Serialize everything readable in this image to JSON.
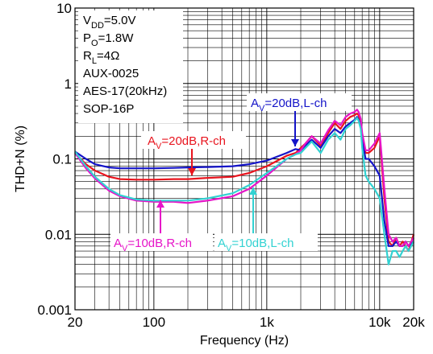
{
  "chart_data": {
    "type": "line",
    "xlabel": "Frequency (Hz)",
    "ylabel": "THD+N (%)",
    "xscale": "log",
    "yscale": "log",
    "xlim": [
      20,
      20000
    ],
    "ylim": [
      0.001,
      10
    ],
    "grid": true,
    "x_ticks": [
      {
        "value": 20,
        "label": "20"
      },
      {
        "value": 100,
        "label": "100"
      },
      {
        "value": 1000,
        "label": "1k"
      },
      {
        "value": 10000,
        "label": "10k"
      },
      {
        "value": 20000,
        "label": "20k"
      }
    ],
    "y_ticks": [
      {
        "value": 10,
        "label": "10"
      },
      {
        "value": 1,
        "label": "1"
      },
      {
        "value": 0.1,
        "label": "0.1"
      },
      {
        "value": 0.01,
        "label": "0.01"
      },
      {
        "value": 0.001,
        "label": "0.001"
      }
    ],
    "conditions": [
      {
        "main": "V",
        "sub": "DD",
        "rest": "=5.0V"
      },
      {
        "main": "P",
        "sub": "O",
        "rest": "=1.8W"
      },
      {
        "main": "R",
        "sub": "L",
        "rest": "=4Ω"
      },
      {
        "main": "AUX-0025",
        "sub": "",
        "rest": ""
      },
      {
        "main": "AES-17(20kHz)",
        "sub": "",
        "rest": ""
      },
      {
        "main": "SOP-16P",
        "sub": "",
        "rest": ""
      }
    ],
    "series": [
      {
        "label_main": "A",
        "label_sub": "V",
        "label_rest": "=20dB,R-ch",
        "color": "#e8141e",
        "x": [
          20,
          25,
          30,
          40,
          50,
          70,
          100,
          150,
          200,
          300,
          500,
          700,
          1000,
          1500,
          1800,
          2000,
          2200,
          2500,
          3000,
          3500,
          4000,
          4500,
          5000,
          5500,
          6000,
          6300,
          6500,
          6800,
          7000,
          7500,
          8000,
          9000,
          10000,
          11000,
          12000,
          13000,
          14000,
          15000,
          16000,
          17000,
          18000,
          20000
        ],
        "y": [
          0.12,
          0.085,
          0.07,
          0.058,
          0.054,
          0.053,
          0.053,
          0.054,
          0.054,
          0.056,
          0.058,
          0.065,
          0.08,
          0.11,
          0.12,
          0.14,
          0.16,
          0.2,
          0.15,
          0.22,
          0.3,
          0.25,
          0.32,
          0.36,
          0.38,
          0.4,
          0.38,
          0.3,
          0.2,
          0.12,
          0.12,
          0.14,
          0.2,
          0.03,
          0.008,
          0.007,
          0.009,
          0.007,
          0.008,
          0.007,
          0.006,
          0.01
        ]
      },
      {
        "label_main": "A",
        "label_sub": "V",
        "label_rest": "=20dB,L-ch",
        "color": "#1414c8",
        "x": [
          20,
          25,
          30,
          40,
          50,
          70,
          100,
          150,
          200,
          300,
          500,
          700,
          1000,
          1500,
          1800,
          2000,
          2200,
          2500,
          3000,
          3500,
          4000,
          4500,
          5000,
          5500,
          6000,
          6300,
          6500,
          6800,
          7000,
          7500,
          8000,
          9000,
          10000,
          11000,
          12000,
          13000,
          14000,
          15000,
          16000,
          17000,
          18000,
          20000
        ],
        "y": [
          0.125,
          0.1,
          0.085,
          0.077,
          0.075,
          0.075,
          0.075,
          0.076,
          0.077,
          0.078,
          0.08,
          0.085,
          0.095,
          0.12,
          0.135,
          0.13,
          0.15,
          0.18,
          0.14,
          0.2,
          0.25,
          0.22,
          0.27,
          0.3,
          0.33,
          0.36,
          0.33,
          0.27,
          0.18,
          0.1,
          0.1,
          0.08,
          0.06,
          0.015,
          0.007,
          0.007,
          0.008,
          0.007,
          0.007,
          0.008,
          0.007,
          0.008
        ]
      },
      {
        "label_main": "A",
        "label_sub": "V",
        "label_rest": "=10dB,R-ch",
        "color": "#e614c8",
        "x": [
          20,
          25,
          30,
          40,
          50,
          70,
          100,
          150,
          200,
          300,
          500,
          700,
          1000,
          1500,
          1800,
          2000,
          2200,
          2500,
          3000,
          3500,
          4000,
          4500,
          5000,
          5500,
          6000,
          6300,
          6500,
          6800,
          7000,
          7500,
          8000,
          9000,
          10000,
          11000,
          12000,
          13000,
          14000,
          15000,
          16000,
          17000,
          18000,
          20000
        ],
        "y": [
          0.12,
          0.075,
          0.055,
          0.038,
          0.032,
          0.028,
          0.027,
          0.027,
          0.026,
          0.028,
          0.032,
          0.04,
          0.06,
          0.1,
          0.115,
          0.13,
          0.16,
          0.2,
          0.16,
          0.24,
          0.32,
          0.28,
          0.36,
          0.4,
          0.42,
          0.45,
          0.42,
          0.34,
          0.22,
          0.13,
          0.13,
          0.16,
          0.22,
          0.04,
          0.01,
          0.008,
          0.009,
          0.007,
          0.007,
          0.008,
          0.007,
          0.009
        ]
      },
      {
        "label_main": "A",
        "label_sub": "V",
        "label_rest": "=10dB,L-ch",
        "color": "#32d2d2",
        "x": [
          20,
          25,
          30,
          40,
          50,
          70,
          100,
          150,
          200,
          300,
          500,
          700,
          1000,
          1500,
          1800,
          2000,
          2200,
          2500,
          3000,
          3500,
          4000,
          4500,
          5000,
          5500,
          6000,
          6300,
          6500,
          6800,
          7000,
          7500,
          8000,
          9000,
          10000,
          11000,
          12000,
          13000,
          14000,
          15000,
          16000,
          17000,
          18000,
          20000
        ],
        "y": [
          0.125,
          0.08,
          0.058,
          0.04,
          0.033,
          0.029,
          0.028,
          0.028,
          0.028,
          0.03,
          0.035,
          0.045,
          0.065,
          0.1,
          0.115,
          0.12,
          0.14,
          0.17,
          0.12,
          0.18,
          0.22,
          0.18,
          0.25,
          0.28,
          0.32,
          0.35,
          0.32,
          0.25,
          0.14,
          0.06,
          0.05,
          0.04,
          0.03,
          0.01,
          0.004,
          0.006,
          0.006,
          0.005,
          0.006,
          0.007,
          0.006,
          0.008
        ]
      }
    ]
  }
}
